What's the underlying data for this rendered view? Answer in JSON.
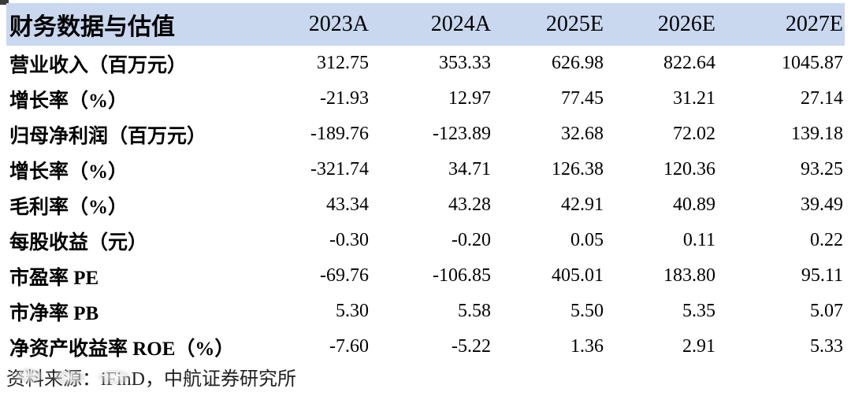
{
  "table": {
    "header": {
      "label": "财务数据与估值",
      "columns": [
        "2023A",
        "2024A",
        "2025E",
        "2026E",
        "2027E"
      ]
    },
    "rows": [
      {
        "label": "营业收入（百万元）",
        "values": [
          "312.75",
          "353.33",
          "626.98",
          "822.64",
          "1045.87"
        ]
      },
      {
        "label": "增长率（%）",
        "values": [
          "-21.93",
          "12.97",
          "77.45",
          "31.21",
          "27.14"
        ]
      },
      {
        "label": "归母净利润（百万元）",
        "values": [
          "-189.76",
          "-123.89",
          "32.68",
          "72.02",
          "139.18"
        ]
      },
      {
        "label": "增长率（%）",
        "values": [
          "-321.74",
          "34.71",
          "126.38",
          "120.36",
          "93.25"
        ]
      },
      {
        "label": "毛利率（%）",
        "values": [
          "43.34",
          "43.28",
          "42.91",
          "40.89",
          "39.49"
        ]
      },
      {
        "label": "每股收益（元）",
        "values": [
          "-0.30",
          "-0.20",
          "0.05",
          "0.11",
          "0.22"
        ]
      },
      {
        "label": "市盈率 PE",
        "values": [
          "-69.76",
          "-106.85",
          "405.01",
          "183.80",
          "95.11"
        ]
      },
      {
        "label": "市净率 PB",
        "values": [
          "5.30",
          "5.58",
          "5.50",
          "5.35",
          "5.07"
        ]
      },
      {
        "label": "净资产收益率 ROE（%）",
        "values": [
          "-7.60",
          "-5.22",
          "1.36",
          "2.91",
          "5.33"
        ]
      }
    ],
    "source_note": "资料来源：iFinD，中航证券研究所"
  },
  "colors": {
    "header_bg": "#c9d8ef",
    "text": "#000000",
    "source_text": "#1f1f1f"
  },
  "chart_data": {
    "type": "table",
    "title": "财务数据与估值",
    "categories": [
      "2023A",
      "2024A",
      "2025E",
      "2026E",
      "2027E"
    ],
    "series": [
      {
        "name": "营业收入（百万元）",
        "values": [
          312.75,
          353.33,
          626.98,
          822.64,
          1045.87
        ]
      },
      {
        "name": "增长率（%）",
        "values": [
          -21.93,
          12.97,
          77.45,
          31.21,
          27.14
        ]
      },
      {
        "name": "归母净利润（百万元）",
        "values": [
          -189.76,
          -123.89,
          32.68,
          72.02,
          139.18
        ]
      },
      {
        "name": "增长率（%）",
        "values": [
          -321.74,
          34.71,
          126.38,
          120.36,
          93.25
        ]
      },
      {
        "name": "毛利率（%）",
        "values": [
          43.34,
          43.28,
          42.91,
          40.89,
          39.49
        ]
      },
      {
        "name": "每股收益（元）",
        "values": [
          -0.3,
          -0.2,
          0.05,
          0.11,
          0.22
        ]
      },
      {
        "name": "市盈率 PE",
        "values": [
          -69.76,
          -106.85,
          405.01,
          183.8,
          95.11
        ]
      },
      {
        "name": "市净率 PB",
        "values": [
          5.3,
          5.58,
          5.5,
          5.35,
          5.07
        ]
      },
      {
        "name": "净资产收益率 ROE（%）",
        "values": [
          -7.6,
          -5.22,
          1.36,
          2.91,
          5.33
        ]
      }
    ],
    "source_note": "资料来源：iFinD，中航证券研究所"
  }
}
